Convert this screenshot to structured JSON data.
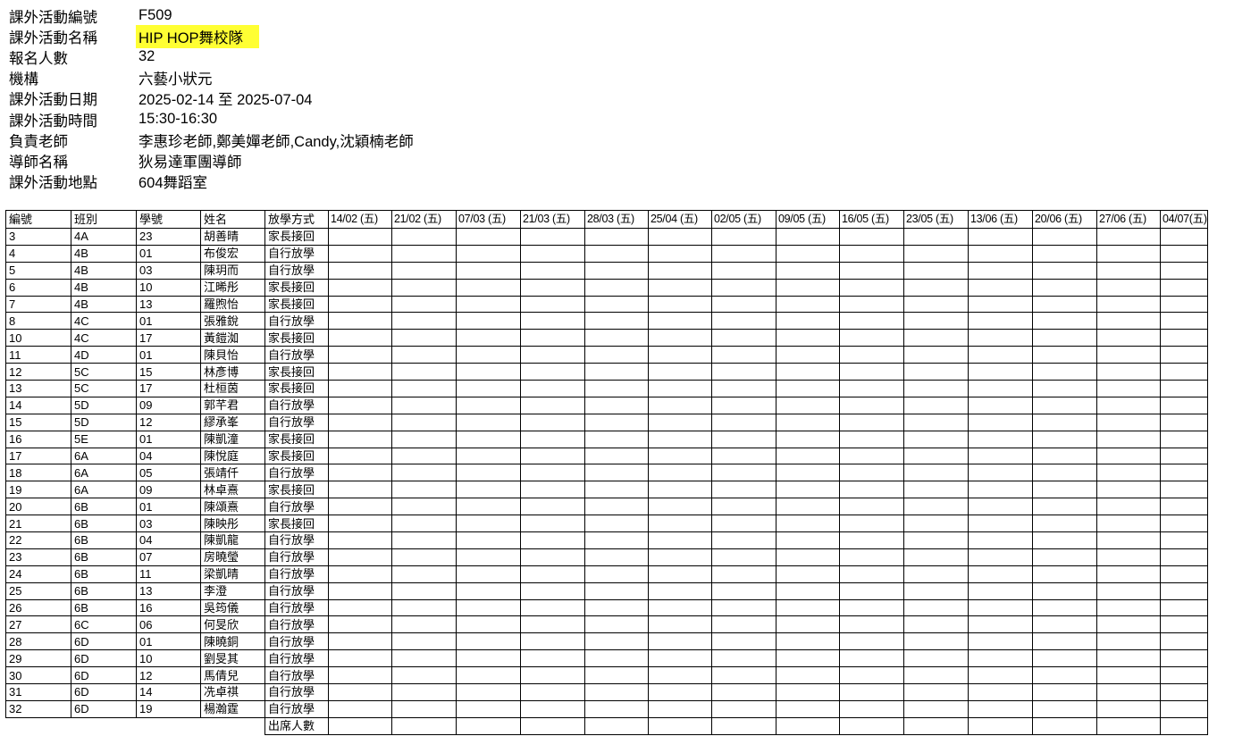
{
  "info": [
    {
      "label": "課外活動編號",
      "value": "F509"
    },
    {
      "label": "課外活動名稱",
      "value": "HIP HOP舞校隊",
      "highlight": "#ffff33"
    },
    {
      "label": "報名人數",
      "value": "32"
    },
    {
      "label": "機構",
      "value": "六藝小狀元"
    },
    {
      "label": "課外活動日期",
      "value": "2025-02-14 至 2025-07-04"
    },
    {
      "label": "課外活動時間",
      "value": "15:30-16:30"
    },
    {
      "label": "負責老師",
      "value": "李惠珍老師,鄭美嬋老師,Candy,沈穎楠老師"
    },
    {
      "label": "導師名稱",
      "value": "狄易達軍團導師"
    },
    {
      "label": "課外活動地點",
      "value": "604舞蹈室"
    }
  ],
  "table": {
    "headers": [
      "編號",
      "班別",
      "學號",
      "姓名",
      "放學方式"
    ],
    "dates": [
      "14/02 (五)",
      "21/02 (五)",
      "07/03 (五)",
      "21/03 (五)",
      "28/03 (五)",
      "25/04 (五)",
      "02/05 (五)",
      "09/05 (五)",
      "16/05 (五)",
      "23/05 (五)",
      "13/06 (五)",
      "20/06 (五)",
      "27/06 (五)",
      "04/07(五)"
    ],
    "rows": [
      [
        "3",
        "4A",
        "23",
        "胡善晴",
        "家長接回"
      ],
      [
        "4",
        "4B",
        "01",
        "布俊宏",
        "自行放學"
      ],
      [
        "5",
        "4B",
        "03",
        "陳玥而",
        "自行放學"
      ],
      [
        "6",
        "4B",
        "10",
        "江晞彤",
        "家長接回"
      ],
      [
        "7",
        "4B",
        "13",
        "羅煦怡",
        "家長接回"
      ],
      [
        "8",
        "4C",
        "01",
        "張雅銳",
        "自行放學"
      ],
      [
        "10",
        "4C",
        "17",
        "黃鎧洳",
        "家長接回"
      ],
      [
        "11",
        "4D",
        "01",
        "陳貝怡",
        "自行放學"
      ],
      [
        "12",
        "5C",
        "15",
        "林彥博",
        "家長接回"
      ],
      [
        "13",
        "5C",
        "17",
        "杜桓茵",
        "家長接回"
      ],
      [
        "14",
        "5D",
        "09",
        "郭芊君",
        "自行放學"
      ],
      [
        "15",
        "5D",
        "12",
        "繆承峯",
        "自行放學"
      ],
      [
        "16",
        "5E",
        "01",
        "陳凱潼",
        "家長接回"
      ],
      [
        "17",
        "6A",
        "04",
        "陳悅庭",
        "家長接回"
      ],
      [
        "18",
        "6A",
        "05",
        "張靖仟",
        "自行放學"
      ],
      [
        "19",
        "6A",
        "09",
        "林卓熹",
        "家長接回"
      ],
      [
        "20",
        "6B",
        "01",
        "陳頌熹",
        "自行放學"
      ],
      [
        "21",
        "6B",
        "03",
        "陳映彤",
        "家長接回"
      ],
      [
        "22",
        "6B",
        "04",
        "陳凱龍",
        "自行放學"
      ],
      [
        "23",
        "6B",
        "07",
        "房曉瑩",
        "自行放學"
      ],
      [
        "24",
        "6B",
        "11",
        "梁凱晴",
        "自行放學"
      ],
      [
        "25",
        "6B",
        "13",
        "李澄",
        "自行放學"
      ],
      [
        "26",
        "6B",
        "16",
        "吳筠儀",
        "自行放學"
      ],
      [
        "27",
        "6C",
        "06",
        "何旻欣",
        "自行放學"
      ],
      [
        "28",
        "6D",
        "01",
        "陳曉銅",
        "自行放學"
      ],
      [
        "29",
        "6D",
        "10",
        "劉旻其",
        "自行放學"
      ],
      [
        "30",
        "6D",
        "12",
        "馬倩兒",
        "自行放學"
      ],
      [
        "31",
        "6D",
        "14",
        "冼卓祺",
        "自行放學"
      ],
      [
        "32",
        "6D",
        "19",
        "楊瀚霆",
        "自行放學"
      ]
    ],
    "footer_label": "出席人數"
  }
}
